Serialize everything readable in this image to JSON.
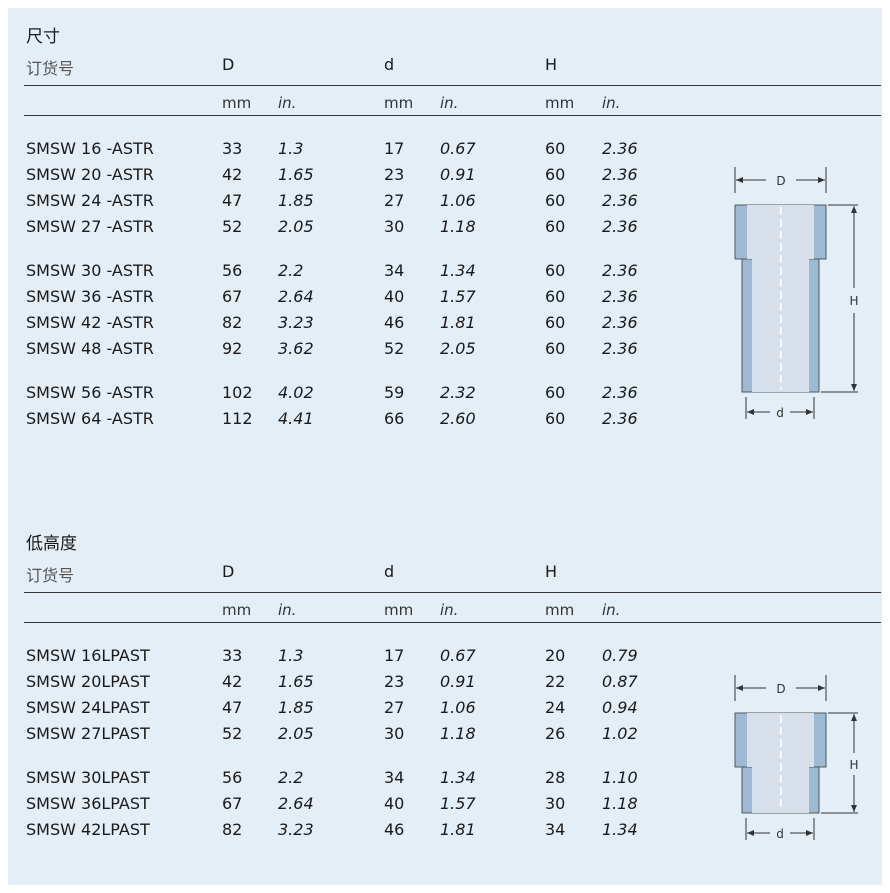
{
  "tables": [
    {
      "title": "尺寸",
      "order_header": "订货号",
      "col_headers": [
        "D",
        "d",
        "H"
      ],
      "units": [
        "mm",
        "in.",
        "mm",
        "in.",
        "mm",
        "in."
      ],
      "rows": [
        [
          "SMSW 16 -ASTR",
          "33",
          "1.3",
          "17",
          "0.67",
          "60",
          "2.36"
        ],
        [
          "SMSW 20 -ASTR",
          "42",
          "1.65",
          "23",
          "0.91",
          "60",
          "2.36"
        ],
        [
          "SMSW 24 -ASTR",
          "47",
          "1.85",
          "27",
          "1.06",
          "60",
          "2.36"
        ],
        [
          "SMSW 27 -ASTR",
          "52",
          "2.05",
          "30",
          "1.18",
          "60",
          "2.36"
        ],
        [
          "SMSW 30 -ASTR",
          "56",
          "2.2",
          "34",
          "1.34",
          "60",
          "2.36"
        ],
        [
          "SMSW 36 -ASTR",
          "67",
          "2.64",
          "40",
          "1.57",
          "60",
          "2.36"
        ],
        [
          "SMSW 42 -ASTR",
          "82",
          "3.23",
          "46",
          "1.81",
          "60",
          "2.36"
        ],
        [
          "SMSW 48 -ASTR",
          "92",
          "3.62",
          "52",
          "2.05",
          "60",
          "2.36"
        ],
        [
          "SMSW 56 -ASTR",
          "102",
          "4.02",
          "59",
          "2.32",
          "60",
          "2.36"
        ],
        [
          "SMSW 64 -ASTR",
          "112",
          "4.41",
          "66",
          "2.60",
          "60",
          "2.36"
        ]
      ],
      "diagram": {
        "label_D": "D",
        "label_d": "d",
        "label_H": "H"
      }
    },
    {
      "title": "低高度",
      "order_header": "订货号",
      "col_headers": [
        "D",
        "d",
        "H"
      ],
      "units": [
        "mm",
        "in.",
        "mm",
        "in.",
        "mm",
        "in."
      ],
      "rows": [
        [
          "SMSW 16LPAST",
          "33",
          "1.3",
          "17",
          "0.67",
          "20",
          "0.79"
        ],
        [
          "SMSW 20LPAST",
          "42",
          "1.65",
          "23",
          "0.91",
          "22",
          "0.87"
        ],
        [
          "SMSW 24LPAST",
          "47",
          "1.85",
          "27",
          "1.06",
          "24",
          "0.94"
        ],
        [
          "SMSW 27LPAST",
          "52",
          "2.05",
          "30",
          "1.18",
          "26",
          "1.02"
        ],
        [
          "SMSW 30LPAST",
          "56",
          "2.2",
          "34",
          "1.34",
          "28",
          "1.10"
        ],
        [
          "SMSW 36LPAST",
          "67",
          "2.64",
          "40",
          "1.57",
          "30",
          "1.18"
        ],
        [
          "SMSW 42LPAST",
          "82",
          "3.23",
          "46",
          "1.81",
          "34",
          "1.34"
        ]
      ],
      "diagram": {
        "label_D": "D",
        "label_d": "d",
        "label_H": "H"
      }
    }
  ],
  "colors": {
    "panel": "#e3eef6",
    "part_ring": "#9cbad4",
    "part_body": "#d7e0ea",
    "text": "#1a1a1a"
  }
}
